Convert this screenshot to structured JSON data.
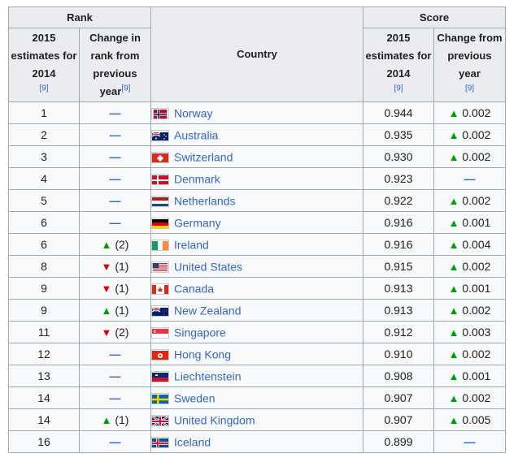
{
  "header": {
    "rank": "Rank",
    "score": "Score",
    "country": "Country",
    "estimates_line1": "2015",
    "estimates_line2": "estimates for",
    "estimates_line3": "2014",
    "estimates_ref": "[9]",
    "change_rank_line1": "Change in",
    "change_rank_line2": "rank from",
    "change_rank_line3": "previous",
    "change_rank_line4": "year",
    "change_rank_ref": "[9]",
    "score_est_line1": "2015",
    "score_est_line2": "estimates for",
    "score_est_line3": "2014",
    "score_est_ref": "[9]",
    "change_score_line1": "Change from",
    "change_score_line2": "previous",
    "change_score_line3": "year",
    "change_score_ref": "[9]"
  },
  "colors": {
    "up": "#00a000",
    "down": "#dd0000",
    "link": "#3366cc"
  },
  "rows": [
    {
      "rank": "1",
      "rank_change_dir": "none",
      "rank_change": "",
      "country": "Norway",
      "flag": "norway-flag-icon",
      "score": "0.944",
      "score_change_dir": "up",
      "score_change": "0.002"
    },
    {
      "rank": "2",
      "rank_change_dir": "none",
      "rank_change": "",
      "country": "Australia",
      "flag": "australia-flag-icon",
      "score": "0.935",
      "score_change_dir": "up",
      "score_change": "0.002"
    },
    {
      "rank": "3",
      "rank_change_dir": "none",
      "rank_change": "",
      "country": "Switzerland",
      "flag": "switzerland-flag-icon",
      "score": "0.930",
      "score_change_dir": "up",
      "score_change": "0.002"
    },
    {
      "rank": "4",
      "rank_change_dir": "none",
      "rank_change": "",
      "country": "Denmark",
      "flag": "denmark-flag-icon",
      "score": "0.923",
      "score_change_dir": "none",
      "score_change": ""
    },
    {
      "rank": "5",
      "rank_change_dir": "none",
      "rank_change": "",
      "country": "Netherlands",
      "flag": "netherlands-flag-icon",
      "score": "0.922",
      "score_change_dir": "up",
      "score_change": "0.002"
    },
    {
      "rank": "6",
      "rank_change_dir": "none",
      "rank_change": "",
      "country": "Germany",
      "flag": "germany-flag-icon",
      "score": "0.916",
      "score_change_dir": "up",
      "score_change": "0.001"
    },
    {
      "rank": "6",
      "rank_change_dir": "up",
      "rank_change": "(2)",
      "country": "Ireland",
      "flag": "ireland-flag-icon",
      "score": "0.916",
      "score_change_dir": "up",
      "score_change": "0.004"
    },
    {
      "rank": "8",
      "rank_change_dir": "down",
      "rank_change": "(1)",
      "country": "United States",
      "flag": "united-states-flag-icon",
      "score": "0.915",
      "score_change_dir": "up",
      "score_change": "0.002"
    },
    {
      "rank": "9",
      "rank_change_dir": "down",
      "rank_change": "(1)",
      "country": "Canada",
      "flag": "canada-flag-icon",
      "score": "0.913",
      "score_change_dir": "up",
      "score_change": "0.001"
    },
    {
      "rank": "9",
      "rank_change_dir": "up",
      "rank_change": "(1)",
      "country": "New Zealand",
      "flag": "new-zealand-flag-icon",
      "score": "0.913",
      "score_change_dir": "up",
      "score_change": "0.002"
    },
    {
      "rank": "11",
      "rank_change_dir": "down",
      "rank_change": "(2)",
      "country": "Singapore",
      "flag": "singapore-flag-icon",
      "score": "0.912",
      "score_change_dir": "up",
      "score_change": "0.003"
    },
    {
      "rank": "12",
      "rank_change_dir": "none",
      "rank_change": "",
      "country": "Hong Kong",
      "flag": "hong-kong-flag-icon",
      "score": "0.910",
      "score_change_dir": "up",
      "score_change": "0.002"
    },
    {
      "rank": "13",
      "rank_change_dir": "none",
      "rank_change": "",
      "country": "Liechtenstein",
      "flag": "liechtenstein-flag-icon",
      "score": "0.908",
      "score_change_dir": "up",
      "score_change": "0.001"
    },
    {
      "rank": "14",
      "rank_change_dir": "none",
      "rank_change": "",
      "country": "Sweden",
      "flag": "sweden-flag-icon",
      "score": "0.907",
      "score_change_dir": "up",
      "score_change": "0.002"
    },
    {
      "rank": "14",
      "rank_change_dir": "up",
      "rank_change": "(1)",
      "country": "United Kingdom",
      "flag": "united-kingdom-flag-icon",
      "score": "0.907",
      "score_change_dir": "up",
      "score_change": "0.005"
    },
    {
      "rank": "16",
      "rank_change_dir": "none",
      "rank_change": "",
      "country": "Iceland",
      "flag": "iceland-flag-icon",
      "score": "0.899",
      "score_change_dir": "none",
      "score_change": ""
    }
  ]
}
